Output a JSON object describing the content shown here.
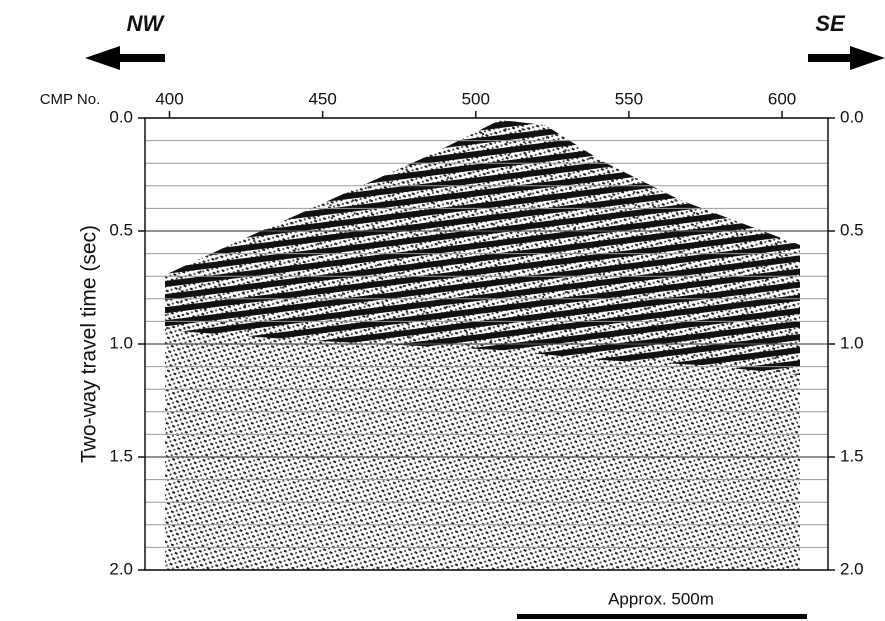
{
  "chart_data": {
    "type": "seismic",
    "direction_left": "NW",
    "direction_right": "SE",
    "xlabel": "CMP No.",
    "ylabel": "Two-way travel time (sec)",
    "scale_label": "Approx. 500m",
    "xlim": [
      392,
      615
    ],
    "xticks": [
      400,
      450,
      500,
      550,
      600
    ],
    "ylim": [
      0,
      2
    ],
    "yticks": [
      {
        "value": 0,
        "label": "0.0"
      },
      {
        "value": 0.5,
        "label": "0.5"
      },
      {
        "value": 1,
        "label": "1.0"
      },
      {
        "value": 1.5,
        "label": "1.5"
      },
      {
        "value": 2,
        "label": "2.0"
      }
    ],
    "yminorticks": [
      0.1,
      0.2,
      0.3,
      0.4,
      0.6,
      0.7,
      0.8,
      0.9,
      1.1,
      1.2,
      1.3,
      1.4,
      1.6,
      1.7,
      1.8,
      1.9
    ],
    "grid": true
  }
}
